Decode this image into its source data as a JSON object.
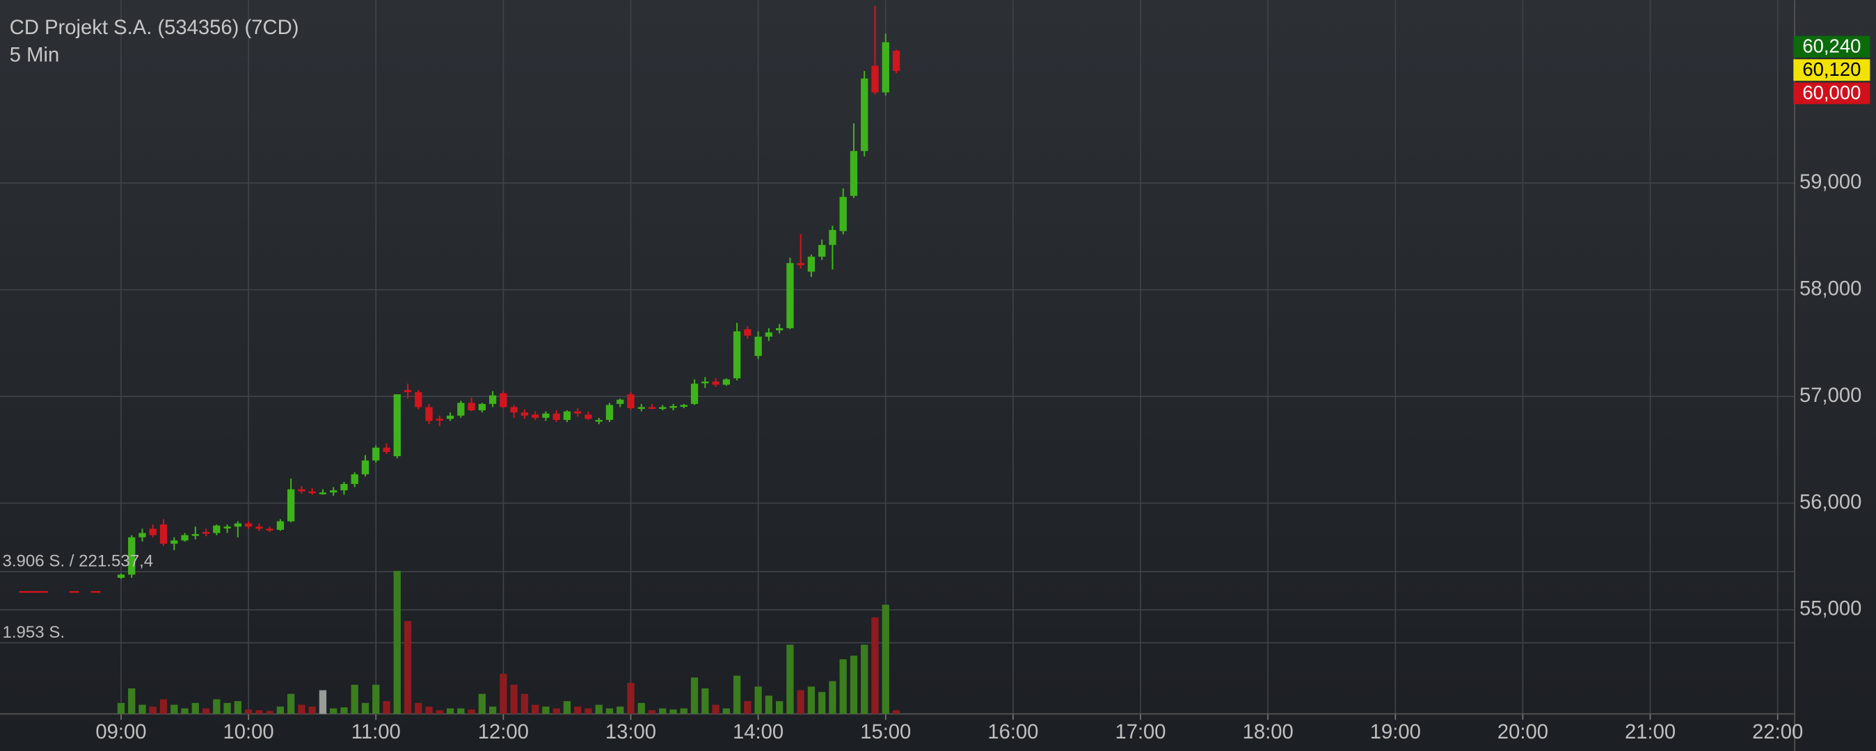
{
  "chart_data": {
    "type": "candlestick",
    "title": "CD Projekt S.A. (534356) (7CD)",
    "subtitle": "5 Min",
    "x": [
      "09:00",
      "09:05",
      "09:10",
      "09:15",
      "09:20",
      "09:25",
      "09:30",
      "09:35",
      "09:40",
      "09:45",
      "09:50",
      "09:55",
      "10:00",
      "10:05",
      "10:10",
      "10:15",
      "10:20",
      "10:25",
      "10:30",
      "10:35",
      "10:40",
      "10:45",
      "10:50",
      "10:55",
      "11:00",
      "11:05",
      "11:10",
      "11:15",
      "11:20",
      "11:25",
      "11:30",
      "11:35",
      "11:40",
      "11:45",
      "11:50",
      "11:55",
      "12:00",
      "12:05",
      "12:10",
      "12:15",
      "12:20",
      "12:25",
      "12:30",
      "12:35",
      "12:40",
      "12:45",
      "12:50",
      "12:55",
      "13:00",
      "13:05",
      "13:10",
      "13:15",
      "13:20",
      "13:25",
      "13:30",
      "13:35",
      "13:40",
      "13:45",
      "13:50",
      "13:55",
      "14:00",
      "14:05",
      "14:10",
      "14:15",
      "14:20",
      "14:25",
      "14:30",
      "14:35",
      "14:40",
      "14:45",
      "14:50",
      "14:55",
      "15:00",
      "15:05"
    ],
    "open": [
      55300,
      55330,
      55680,
      55760,
      55800,
      55620,
      55650,
      55700,
      55730,
      55720,
      55770,
      55780,
      55810,
      55780,
      55760,
      55750,
      55830,
      56130,
      56110,
      56100,
      56100,
      56120,
      56180,
      56270,
      56400,
      56520,
      56440,
      57060,
      57040,
      56900,
      56790,
      56790,
      56820,
      56940,
      56870,
      56930,
      57030,
      56900,
      56850,
      56830,
      56800,
      56840,
      56780,
      56860,
      56830,
      56770,
      56780,
      56930,
      57020,
      56890,
      56900,
      56890,
      56900,
      56910,
      56930,
      57130,
      57140,
      57110,
      57170,
      57630,
      57380,
      57560,
      57620,
      57640,
      58250,
      58170,
      58310,
      58420,
      58550,
      58880,
      59300,
      60100,
      59850,
      60240
    ],
    "high": [
      55340,
      55700,
      55760,
      55800,
      55850,
      55680,
      55720,
      55780,
      55760,
      55800,
      55800,
      55830,
      55830,
      55810,
      55780,
      55850,
      56230,
      56160,
      56140,
      56130,
      56150,
      56200,
      56290,
      56450,
      56540,
      56560,
      57020,
      57120,
      57060,
      56930,
      56820,
      56850,
      56960,
      56990,
      56940,
      57050,
      57050,
      56920,
      56880,
      56860,
      56860,
      56870,
      56870,
      56890,
      56860,
      56800,
      56940,
      56980,
      57040,
      56930,
      56930,
      56920,
      56930,
      56930,
      57160,
      57180,
      57170,
      57170,
      57690,
      57660,
      57610,
      57640,
      57680,
      58300,
      58520,
      58330,
      58470,
      58600,
      58950,
      59560,
      60050,
      60660,
      60400,
      60250
    ],
    "low": [
      55290,
      55300,
      55640,
      55680,
      55600,
      55560,
      55640,
      55660,
      55690,
      55700,
      55720,
      55680,
      55760,
      55740,
      55730,
      55740,
      55820,
      56090,
      56080,
      56080,
      56070,
      56080,
      56150,
      56250,
      56380,
      56460,
      56420,
      56980,
      56880,
      56740,
      56720,
      56770,
      56800,
      56860,
      56850,
      56900,
      56890,
      56800,
      56790,
      56780,
      56770,
      56760,
      56760,
      56810,
      56780,
      56740,
      56760,
      56900,
      56870,
      56860,
      56880,
      56870,
      56870,
      56890,
      56920,
      57080,
      57090,
      57100,
      57150,
      57540,
      57350,
      57520,
      57590,
      57630,
      58200,
      58120,
      58280,
      58190,
      58520,
      58860,
      59250,
      59830,
      59820,
      60030
    ],
    "close": [
      55330,
      55680,
      55720,
      55700,
      55620,
      55650,
      55700,
      55710,
      55720,
      55790,
      55780,
      55810,
      55780,
      55760,
      55750,
      55830,
      56130,
      56110,
      56100,
      56100,
      56120,
      56180,
      56270,
      56400,
      56520,
      56480,
      57020,
      57040,
      56900,
      56770,
      56780,
      56820,
      56940,
      56870,
      56930,
      57010,
      56900,
      56850,
      56820,
      56800,
      56840,
      56780,
      56860,
      56840,
      56790,
      56780,
      56920,
      56970,
      56890,
      56900,
      56890,
      56900,
      56910,
      56920,
      57120,
      57140,
      57110,
      57160,
      57610,
      57570,
      57560,
      57600,
      57640,
      58250,
      58230,
      58310,
      58420,
      58560,
      58870,
      59300,
      59980,
      59850,
      60320,
      60050
    ],
    "volume": [
      300,
      700,
      250,
      200,
      400,
      250,
      150,
      300,
      150,
      400,
      300,
      350,
      120,
      100,
      80,
      200,
      550,
      250,
      200,
      650,
      150,
      180,
      800,
      300,
      800,
      350,
      3930,
      2550,
      300,
      200,
      100,
      150,
      150,
      120,
      550,
      200,
      1100,
      800,
      550,
      250,
      200,
      150,
      350,
      200,
      150,
      250,
      150,
      200,
      850,
      300,
      100,
      150,
      120,
      150,
      1000,
      700,
      250,
      150,
      1050,
      350,
      750,
      500,
      350,
      1900,
      650,
      750,
      600,
      900,
      1500,
      1600,
      1900,
      2650,
      3000,
      100
    ],
    "up_color": "#3fb31b",
    "down_color": "#d0161e",
    "volume_up_color": "#3b7d1f",
    "volume_down_color": "#8c1c1f",
    "volume_flat_color": "#9a9a9a",
    "xlim": [
      "08:03",
      "22:08"
    ],
    "xticks": [
      "09:00",
      "10:00",
      "11:00",
      "12:00",
      "13:00",
      "14:00",
      "15:00",
      "16:00",
      "17:00",
      "18:00",
      "19:00",
      "20:00",
      "21:00",
      "22:00"
    ],
    "ylim": [
      54025,
      60715
    ],
    "yticks": [
      {
        "value": 55000,
        "label": "55,000"
      },
      {
        "value": 56000,
        "label": "56,000"
      },
      {
        "value": 57000,
        "label": "57,000"
      },
      {
        "value": 58000,
        "label": "58,000"
      },
      {
        "value": 59000,
        "label": "59,000"
      }
    ],
    "volume_ylim": [
      0,
      4500
    ],
    "volume_yticks": [
      {
        "value": 1953,
        "label": "1.953 S."
      },
      {
        "value": 3906,
        "label": "3.906 S. / 221.537,4"
      }
    ],
    "price_badges": [
      {
        "value": 60240,
        "label": "60,240",
        "color": "#0b6b0b",
        "text_color": "#ffffff"
      },
      {
        "value": 60120,
        "label": "60,120",
        "color": "#f2e200",
        "text_color": "#000000"
      },
      {
        "value": 60000,
        "label": "60,000",
        "color": "#d0101a",
        "text_color": "#ffffff"
      }
    ],
    "grid": true
  }
}
